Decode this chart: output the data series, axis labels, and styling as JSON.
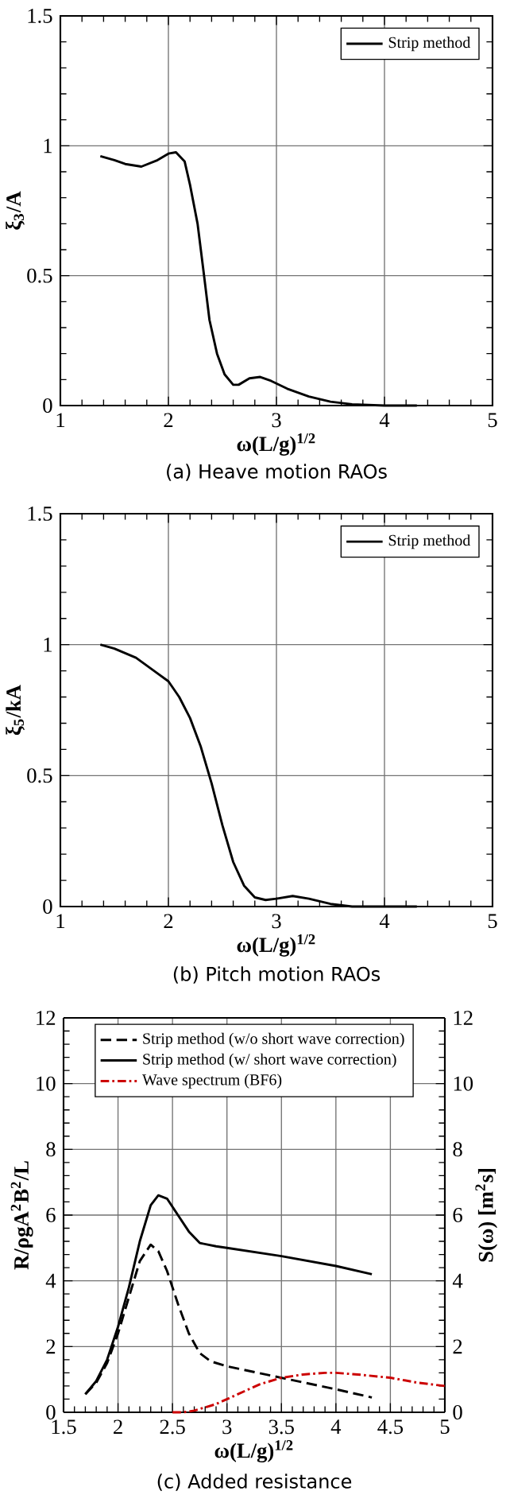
{
  "chart_data": [
    {
      "type": "line",
      "xlabel": "ω(L/g)$^{1/2}$",
      "ylabel": "ξ$_{3}$/A",
      "annotations": [
        "(a)  Heave  motion  RAOs"
      ],
      "xlim": [
        1,
        5
      ],
      "ylim": [
        0,
        1.5
      ],
      "xticks": [
        1,
        2,
        3,
        4,
        5
      ],
      "yticks": [
        0,
        0.5,
        1,
        1.5
      ],
      "grid": true,
      "legend": "top right",
      "series": [
        {
          "name": "Strip method",
          "color": "#000000",
          "line_style": "solid",
          "x": [
            1.37,
            1.5,
            1.6,
            1.75,
            1.9,
            2.0,
            2.07,
            2.15,
            2.2,
            2.27,
            2.33,
            2.38,
            2.45,
            2.52,
            2.6,
            2.65,
            2.75,
            2.85,
            2.95,
            3.1,
            3.3,
            3.5,
            3.7,
            4.0,
            4.3
          ],
          "values": [
            0.96,
            0.945,
            0.93,
            0.92,
            0.945,
            0.97,
            0.975,
            0.94,
            0.85,
            0.7,
            0.5,
            0.33,
            0.2,
            0.12,
            0.08,
            0.08,
            0.105,
            0.11,
            0.095,
            0.065,
            0.035,
            0.015,
            0.005,
            0.0,
            0.0
          ]
        }
      ]
    },
    {
      "type": "line",
      "xlabel": "ω(L/g)$^{1/2}$",
      "ylabel": "ξ$_{5}$/kA",
      "annotations": [
        "(b)  Pitch  motion  RAOs"
      ],
      "xlim": [
        1,
        5
      ],
      "ylim": [
        0,
        1.5
      ],
      "xticks": [
        1,
        2,
        3,
        4,
        5
      ],
      "yticks": [
        0,
        0.5,
        1,
        1.5
      ],
      "grid": true,
      "legend": "top right",
      "series": [
        {
          "name": "Strip method",
          "color": "#000000",
          "line_style": "solid",
          "x": [
            1.37,
            1.5,
            1.7,
            1.9,
            2.0,
            2.1,
            2.2,
            2.3,
            2.4,
            2.5,
            2.6,
            2.7,
            2.8,
            2.9,
            3.0,
            3.15,
            3.3,
            3.5,
            3.7,
            4.0,
            4.3
          ],
          "values": [
            1.0,
            0.985,
            0.95,
            0.89,
            0.86,
            0.8,
            0.72,
            0.61,
            0.47,
            0.31,
            0.17,
            0.08,
            0.035,
            0.025,
            0.03,
            0.04,
            0.03,
            0.01,
            0.0,
            0.0,
            0.0
          ]
        }
      ]
    },
    {
      "type": "line",
      "xlabel": "ω(L/g)$^{1/2}$",
      "ylabel": "R/ρgA$^{2}$B$^{2}$/L",
      "y2label": "S(ω)  [m$^{2}$s]",
      "annotations": [
        "(c)  Added  resistance"
      ],
      "xlim": [
        1.5,
        5
      ],
      "ylim": [
        0,
        12
      ],
      "y2lim": [
        0,
        12
      ],
      "xticks": [
        1.5,
        2,
        2.5,
        3,
        3.5,
        4,
        4.5,
        5
      ],
      "yticks": [
        0,
        2,
        4,
        6,
        8,
        10,
        12
      ],
      "y2ticks": [
        0,
        2,
        4,
        6,
        8,
        10,
        12
      ],
      "grid": true,
      "legend": "top",
      "series": [
        {
          "name": "Strip method (w/o short wave correction)",
          "color": "#000000",
          "line_style": "dashed",
          "x": [
            1.7,
            1.8,
            1.9,
            2.0,
            2.1,
            2.2,
            2.3,
            2.37,
            2.45,
            2.55,
            2.65,
            2.75,
            2.85,
            3.0,
            3.5,
            4.0,
            4.33
          ],
          "values": [
            0.55,
            0.9,
            1.5,
            2.4,
            3.5,
            4.6,
            5.1,
            4.9,
            4.3,
            3.3,
            2.4,
            1.8,
            1.55,
            1.4,
            1.05,
            0.7,
            0.45
          ]
        },
        {
          "name": "Strip method (w/ short wave correction)",
          "color": "#000000",
          "line_style": "solid",
          "x": [
            1.7,
            1.8,
            1.9,
            2.0,
            2.1,
            2.2,
            2.3,
            2.37,
            2.45,
            2.55,
            2.65,
            2.75,
            2.9,
            3.0,
            3.5,
            4.0,
            4.33
          ],
          "values": [
            0.55,
            0.95,
            1.6,
            2.6,
            3.8,
            5.2,
            6.3,
            6.6,
            6.5,
            6.0,
            5.5,
            5.15,
            5.05,
            5.0,
            4.75,
            4.45,
            4.2
          ]
        },
        {
          "name": "Wave spectrum (BF6)",
          "color": "#cc0000",
          "line_style": "dashdot",
          "axis": "y2",
          "x": [
            2.5,
            2.6,
            2.7,
            2.9,
            3.1,
            3.3,
            3.5,
            3.7,
            3.9,
            4.0,
            4.2,
            4.5,
            4.75,
            5.0
          ],
          "values": [
            0,
            0,
            0.05,
            0.25,
            0.55,
            0.85,
            1.05,
            1.15,
            1.2,
            1.2,
            1.15,
            1.05,
            0.9,
            0.8
          ]
        }
      ]
    }
  ]
}
